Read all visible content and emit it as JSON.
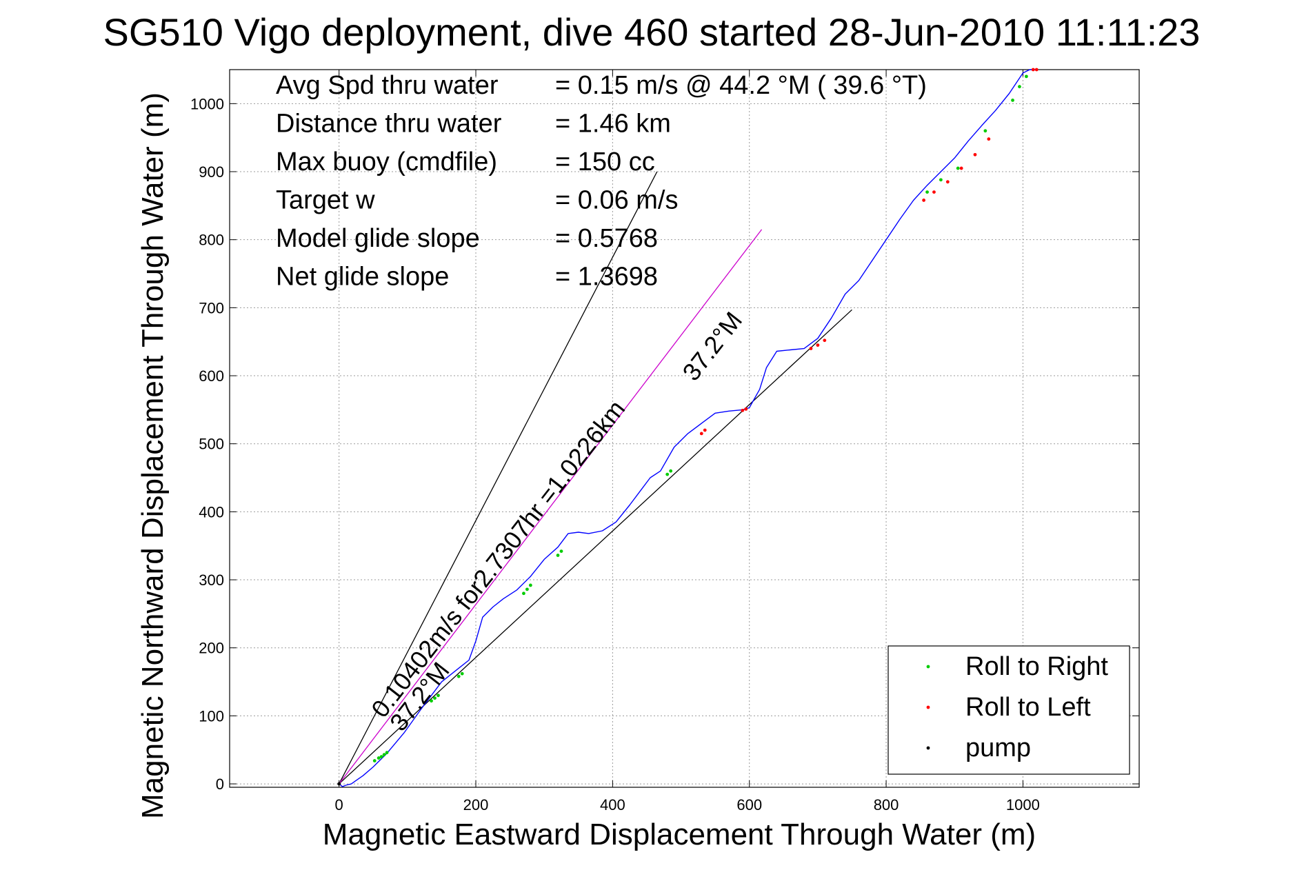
{
  "chart_data": {
    "type": "line",
    "title": "SG510 Vigo deployment, dive 460 started 28-Jun-2010 11:11:23",
    "xlabel": "Magnetic Eastward Displacement Through Water (m)",
    "ylabel": "Magnetic Northward Displacement Through Water (m)",
    "xlim": [
      -160,
      1170
    ],
    "ylim": [
      -5,
      1050
    ],
    "xticks": [
      0,
      200,
      400,
      600,
      800,
      1000
    ],
    "yticks": [
      0,
      100,
      200,
      300,
      400,
      500,
      600,
      700,
      800,
      900,
      1000
    ],
    "grid": true,
    "info_lines": [
      {
        "label": "Avg Spd thru water",
        "value": "=  0.15 m/s @  44.2 °M ( 39.6 °T)"
      },
      {
        "label": "Distance thru water",
        "value": "=  1.46 km"
      },
      {
        "label": "Max buoy (cmdfile)",
        "value": "= 150 cc"
      },
      {
        "label": "Target w",
        "value": "= 0.06 m/s"
      },
      {
        "label": "Model glide slope",
        "value": "= 0.5768"
      },
      {
        "label": "Net glide slope",
        "value": "= 1.3698"
      }
    ],
    "annotations": [
      {
        "text": "0.10402m/s for2.7307hr =1.0226km",
        "x": 65,
        "y": 95,
        "angle": 52
      },
      {
        "text": "37.2°M",
        "x": 92,
        "y": 75,
        "angle": 52
      },
      {
        "text": "37.2°M",
        "x": 520,
        "y": 590,
        "angle": 52
      }
    ],
    "reference_lines": [
      {
        "name": "envelope-left",
        "color": "#000000",
        "x": [
          0,
          465
        ],
        "y": [
          0,
          900
        ]
      },
      {
        "name": "envelope-right",
        "color": "#000000",
        "x": [
          0,
          750
        ],
        "y": [
          0,
          697
        ]
      },
      {
        "name": "current-vector",
        "color": "#cc00cc",
        "x": [
          0,
          618
        ],
        "y": [
          0,
          815
        ]
      }
    ],
    "track": {
      "color": "#0000ff",
      "x": [
        0,
        5,
        10,
        18,
        25,
        35,
        50,
        70,
        95,
        120,
        150,
        175,
        190,
        200,
        210,
        225,
        240,
        260,
        280,
        300,
        320,
        335,
        350,
        365,
        385,
        405,
        425,
        440,
        455,
        470,
        490,
        510,
        530,
        550,
        570,
        590,
        600,
        615,
        625,
        640,
        660,
        680,
        700,
        720,
        740,
        760,
        780,
        800,
        820,
        840,
        860,
        880,
        900,
        920,
        940,
        960,
        980,
        1000,
        1010,
        1020
      ],
      "y": [
        0,
        -4,
        -2,
        0,
        5,
        12,
        25,
        45,
        75,
        110,
        150,
        170,
        182,
        210,
        245,
        260,
        272,
        285,
        305,
        330,
        348,
        368,
        370,
        368,
        372,
        385,
        410,
        430,
        450,
        460,
        495,
        515,
        530,
        545,
        548,
        550,
        553,
        580,
        612,
        636,
        638,
        640,
        655,
        685,
        720,
        740,
        770,
        800,
        830,
        858,
        880,
        900,
        920,
        945,
        968,
        990,
        1015,
        1045,
        1050,
        1050
      ]
    },
    "series": [
      {
        "name": "Roll to Right",
        "color": "#00cc00",
        "x": [
          52,
          58,
          62,
          66,
          70,
          135,
          140,
          145,
          175,
          180,
          270,
          275,
          280,
          320,
          325,
          480,
          485,
          860,
          880,
          905,
          945,
          985,
          995,
          1005
        ],
        "y": [
          34,
          38,
          40,
          43,
          46,
          122,
          126,
          130,
          158,
          162,
          280,
          286,
          292,
          336,
          342,
          455,
          460,
          870,
          888,
          905,
          960,
          1005,
          1025,
          1040
        ]
      },
      {
        "name": "Roll to Left",
        "color": "#ff0000",
        "x": [
          530,
          535,
          590,
          595,
          690,
          700,
          710,
          855,
          870,
          890,
          910,
          930,
          950,
          1015,
          1020
        ],
        "y": [
          515,
          520,
          549,
          551,
          640,
          645,
          652,
          858,
          870,
          885,
          905,
          925,
          948,
          1050,
          1050
        ]
      },
      {
        "name": "pump",
        "color": "#000000",
        "x": [
          0
        ],
        "y": [
          0
        ]
      }
    ],
    "legend_position": "bottom-right"
  }
}
